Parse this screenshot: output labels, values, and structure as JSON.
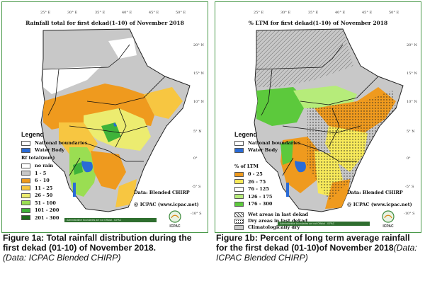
{
  "figure_a": {
    "title": "Rainfall  total  for  first  dekad(1-10)  of  November  2018",
    "lon_ticks": [
      "25° E",
      "30° E",
      "35° E",
      "40° E",
      "45° E",
      "50° E"
    ],
    "lat_ticks": [
      "20° N",
      "15° N",
      "10° N",
      "5° N",
      "0°",
      "-5° S",
      "-10° S"
    ],
    "legend": {
      "heading": "Legend",
      "items": [
        {
          "label": "National boundaries",
          "color": "#ffffff"
        },
        {
          "label": "Water Body",
          "color": "#2a6bd6"
        }
      ],
      "scale_title": "Rf total(mm)",
      "scale": [
        {
          "label": "no rain",
          "color": "#ffffff"
        },
        {
          "label": "1 - 5",
          "color": "#c8c8c8"
        },
        {
          "label": "6 - 10",
          "color": "#ef9a1e"
        },
        {
          "label": "11 - 25",
          "color": "#f7c641"
        },
        {
          "label": "26 - 50",
          "color": "#ecec70"
        },
        {
          "label": "51 - 100",
          "color": "#9ade52"
        },
        {
          "label": "101 - 200",
          "color": "#3fb33a"
        },
        {
          "label": "201 - 300",
          "color": "#1d6b1d"
        }
      ]
    },
    "data_note": "Data: Blended CHIRP",
    "credit": "@ ICPAC (www.icpac.net)",
    "footer": "Administrative boundaries are not Official - ICPAC",
    "logo_text": "ICPAC"
  },
  "figure_b": {
    "title": "% LTM  for  first  dekad(1-10)  of  November  2018",
    "lon_ticks": [
      "25° E",
      "30° E",
      "35° E",
      "40° E",
      "45° E",
      "50° E"
    ],
    "lat_ticks": [
      "20° N",
      "15° N",
      "10° N",
      "5° N",
      "0°",
      "-5° S",
      "-10° S"
    ],
    "legend": {
      "heading": "Legend",
      "items": [
        {
          "label": "National boundaries",
          "color": "#ffffff"
        },
        {
          "label": "Water Body",
          "color": "#2a6bd6"
        }
      ],
      "scale_title": "% of LTM",
      "scale": [
        {
          "label": "0 - 25",
          "color": "#ef9a1e"
        },
        {
          "label": "26 - 75",
          "color": "#f7e95a"
        },
        {
          "label": "76 - 125",
          "color": "#ffffff"
        },
        {
          "label": "126 - 175",
          "color": "#b6ec7a"
        },
        {
          "label": "176 - 300",
          "color": "#5cc93c"
        }
      ],
      "overlays": [
        {
          "label": "Wet areas in last dekad",
          "pattern": "hatch"
        },
        {
          "label": "Dry areas in last dekad",
          "pattern": "dots"
        },
        {
          "label": "Climatologically dry",
          "color": "#c8c8c8"
        }
      ]
    },
    "data_note": "Data: Blended CHIRP",
    "credit": "@ ICPAC (www.icpac.net)",
    "footer": "Administrative boundaries are not Official - ICPAC",
    "logo_text": "ICPAC"
  },
  "captions": {
    "a_bold": "Figure 1a: Total rainfall distribution during the first dekad (01-10) of November 2018.",
    "a_italic": "(Data: ICPAC Blended CHIRP)",
    "b_bold": "Figure 1b: Percent of long term average rainfall for the first  dekad (01-10)of November 2018",
    "b_italic": "(Data: ICPAC Blended CHIRP)"
  }
}
